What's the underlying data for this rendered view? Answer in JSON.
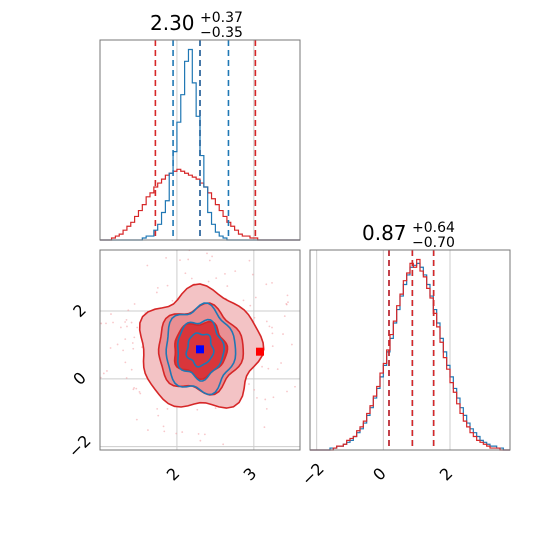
{
  "chart_data": [
    {
      "type": "histogram",
      "panel": "marginal-param-1",
      "title_value": "2.30",
      "title_plus": "+0.37",
      "title_minus": "−0.35",
      "xlim": [
        1.0,
        3.6
      ],
      "bin_edges_start": 1.0,
      "bin_width": 0.05,
      "series": [
        {
          "color": "#1f77b4",
          "counts": [
            0,
            0,
            0,
            0,
            0,
            0,
            0,
            0,
            0,
            0,
            0,
            1,
            2,
            2,
            5,
            8,
            14,
            20,
            34,
            45,
            60,
            74,
            91,
            97,
            80,
            63,
            43,
            27,
            14,
            8,
            4,
            2,
            1,
            0,
            0,
            0,
            0,
            0,
            0,
            0,
            0,
            0,
            0,
            0,
            0,
            0,
            0,
            0,
            0,
            0,
            0,
            0
          ],
          "quantiles": [
            1.95,
            2.3,
            2.67
          ]
        },
        {
          "color": "#d62728",
          "counts": [
            0,
            0,
            0,
            1,
            2,
            3,
            5,
            7,
            9,
            12,
            15,
            18,
            22,
            24,
            27,
            29,
            31,
            33,
            34,
            35,
            36,
            35,
            34,
            33,
            32,
            31,
            29,
            27,
            24,
            21,
            18,
            15,
            12,
            9,
            7,
            5,
            3,
            2,
            2,
            1,
            1,
            0,
            0,
            0,
            0,
            0,
            0,
            0,
            0,
            0,
            0,
            0
          ],
          "quantiles": [
            1.72,
            2.3,
            3.02
          ]
        }
      ],
      "grid": true
    },
    {
      "type": "scatter",
      "panel": "joint-2d",
      "xlim": [
        1.0,
        3.6
      ],
      "ylim": [
        -2.1,
        3.8
      ],
      "xticks": [
        "2",
        "3"
      ],
      "yticks": [
        "−2",
        "0",
        "2"
      ],
      "levels": [
        {
          "series": "red",
          "outer_radius_x": [
            0.78,
            0.55,
            0.34
          ],
          "outer_radius_y": [
            1.75,
            1.25,
            0.8
          ]
        },
        {
          "series": "blue",
          "outer_radius_x": [
            0.45,
            0.3,
            0.17
          ],
          "outer_radius_y": [
            1.25,
            0.85,
            0.48
          ]
        }
      ],
      "center": [
        2.3,
        0.87
      ],
      "truth_markers": [
        {
          "color": "#0000ff",
          "x": 2.3,
          "y": 0.87
        },
        {
          "color": "#ff0000",
          "x": 3.08,
          "y": 0.8
        }
      ],
      "grid": true
    },
    {
      "type": "histogram",
      "panel": "marginal-param-2",
      "title_value": "0.87",
      "title_plus": "+0.64",
      "title_minus": "−0.70",
      "xlim": [
        -2.2,
        3.8
      ],
      "xticks": [
        "−2",
        "0",
        "2"
      ],
      "bin_edges_start": -2.2,
      "bin_width": 0.1,
      "series": [
        {
          "color": "#1f77b4",
          "counts": [
            0,
            0,
            0,
            0,
            0,
            0,
            1,
            1,
            2,
            2,
            3,
            4,
            5,
            7,
            9,
            11,
            14,
            18,
            22,
            27,
            32,
            38,
            44,
            51,
            58,
            66,
            73,
            80,
            86,
            91,
            95,
            96,
            97,
            95,
            91,
            86,
            80,
            73,
            66,
            58,
            51,
            44,
            38,
            32,
            27,
            22,
            18,
            14,
            11,
            9,
            7,
            5,
            4,
            3,
            2,
            2,
            1,
            1,
            0,
            0
          ],
          "quantiles": [
            0.17,
            0.87,
            1.51
          ]
        },
        {
          "color": "#d62728",
          "counts": [
            0,
            0,
            0,
            0,
            0,
            0,
            0,
            1,
            2,
            2,
            3,
            5,
            6,
            7,
            10,
            12,
            15,
            19,
            23,
            28,
            33,
            40,
            45,
            52,
            60,
            67,
            75,
            81,
            88,
            92,
            97,
            95,
            99,
            93,
            90,
            84,
            79,
            71,
            64,
            56,
            48,
            42,
            35,
            30,
            24,
            19,
            15,
            12,
            9,
            7,
            5,
            4,
            3,
            2,
            1,
            1,
            1,
            0,
            0,
            0
          ],
          "quantiles": [
            0.17,
            0.87,
            1.51
          ]
        }
      ],
      "grid": true
    }
  ]
}
